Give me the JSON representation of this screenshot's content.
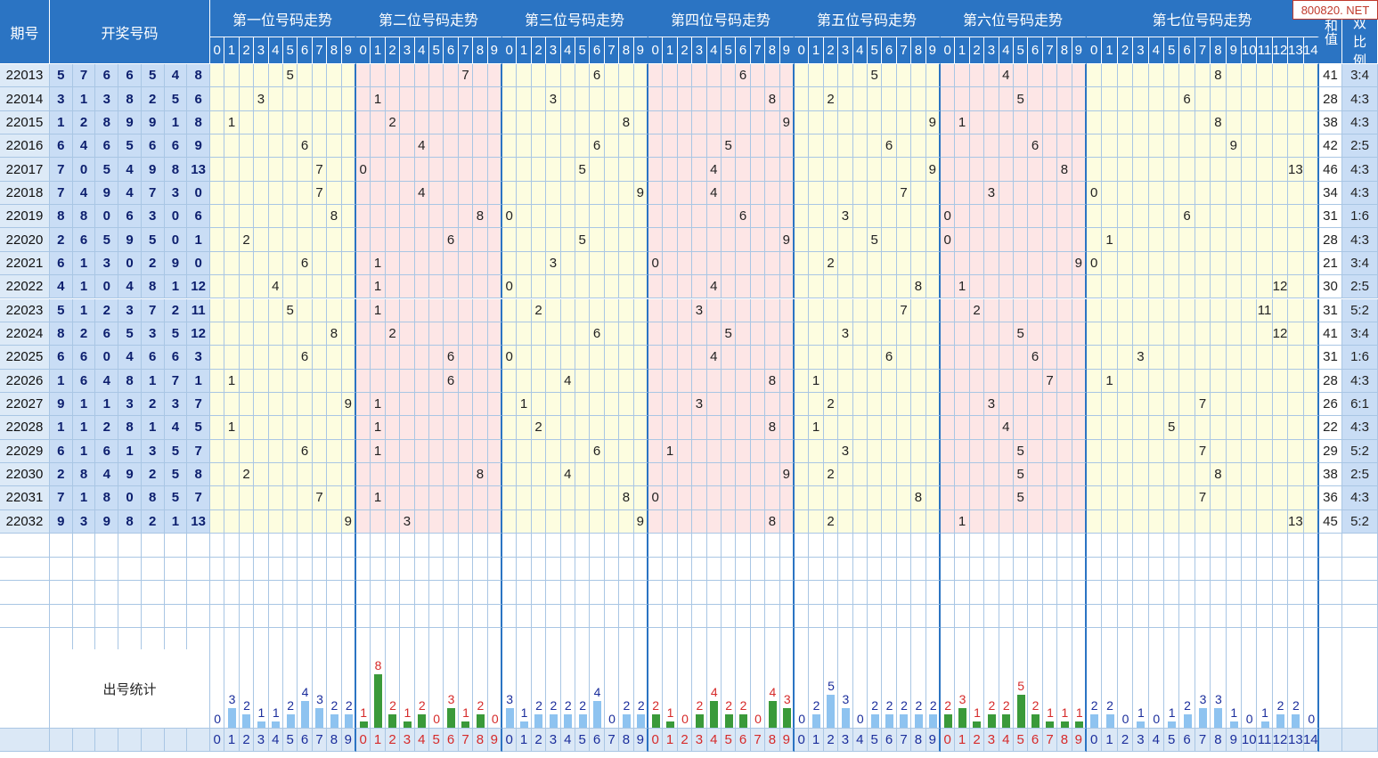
{
  "watermark": "800820. NET",
  "header": {
    "issue_label": "期号",
    "draw_label": "开奖号码",
    "position_titles": [
      "第一位号码走势",
      "第二位号码走势",
      "第三位号码走势",
      "第四位号码走势",
      "第五位号码走势",
      "第六位号码走势",
      "第七位号码走势"
    ],
    "sum_label": "和值",
    "ratio_label": "单双比例",
    "digits_0_9": [
      "0",
      "1",
      "2",
      "3",
      "4",
      "5",
      "6",
      "7",
      "8",
      "9"
    ],
    "digits_0_14": [
      "0",
      "1",
      "2",
      "3",
      "4",
      "5",
      "6",
      "7",
      "8",
      "9",
      "10",
      "11",
      "12",
      "13",
      "14"
    ]
  },
  "rows": [
    {
      "issue": "22013",
      "nums": [
        5,
        7,
        6,
        6,
        5,
        4,
        8
      ],
      "sum": "41",
      "ratio": "3:4"
    },
    {
      "issue": "22014",
      "nums": [
        3,
        1,
        3,
        8,
        2,
        5,
        6
      ],
      "sum": "28",
      "ratio": "4:3"
    },
    {
      "issue": "22015",
      "nums": [
        1,
        2,
        8,
        9,
        9,
        1,
        8
      ],
      "sum": "38",
      "ratio": "4:3"
    },
    {
      "issue": "22016",
      "nums": [
        6,
        4,
        6,
        5,
        6,
        6,
        9
      ],
      "sum": "42",
      "ratio": "2:5"
    },
    {
      "issue": "22017",
      "nums": [
        7,
        0,
        5,
        4,
        9,
        8,
        13
      ],
      "sum": "46",
      "ratio": "4:3"
    },
    {
      "issue": "22018",
      "nums": [
        7,
        4,
        9,
        4,
        7,
        3,
        0
      ],
      "sum": "34",
      "ratio": "4:3"
    },
    {
      "issue": "22019",
      "nums": [
        8,
        8,
        0,
        6,
        3,
        0,
        6
      ],
      "sum": "31",
      "ratio": "1:6"
    },
    {
      "issue": "22020",
      "nums": [
        2,
        6,
        5,
        9,
        5,
        0,
        1
      ],
      "sum": "28",
      "ratio": "4:3"
    },
    {
      "issue": "22021",
      "nums": [
        6,
        1,
        3,
        0,
        2,
        9,
        0
      ],
      "sum": "21",
      "ratio": "3:4"
    },
    {
      "issue": "22022",
      "nums": [
        4,
        1,
        0,
        4,
        8,
        1,
        12
      ],
      "sum": "30",
      "ratio": "2:5"
    },
    {
      "issue": "22023",
      "nums": [
        5,
        1,
        2,
        3,
        7,
        2,
        11
      ],
      "sum": "31",
      "ratio": "5:2"
    },
    {
      "issue": "22024",
      "nums": [
        8,
        2,
        6,
        5,
        3,
        5,
        12
      ],
      "sum": "41",
      "ratio": "3:4"
    },
    {
      "issue": "22025",
      "nums": [
        6,
        6,
        0,
        4,
        6,
        6,
        3
      ],
      "sum": "31",
      "ratio": "1:6"
    },
    {
      "issue": "22026",
      "nums": [
        1,
        6,
        4,
        8,
        1,
        7,
        1
      ],
      "sum": "28",
      "ratio": "4:3"
    },
    {
      "issue": "22027",
      "nums": [
        9,
        1,
        1,
        3,
        2,
        3,
        7
      ],
      "sum": "26",
      "ratio": "6:1"
    },
    {
      "issue": "22028",
      "nums": [
        1,
        1,
        2,
        8,
        1,
        4,
        5
      ],
      "sum": "22",
      "ratio": "4:3"
    },
    {
      "issue": "22029",
      "nums": [
        6,
        1,
        6,
        1,
        3,
        5,
        7
      ],
      "sum": "29",
      "ratio": "5:2"
    },
    {
      "issue": "22030",
      "nums": [
        2,
        8,
        4,
        9,
        2,
        5,
        8
      ],
      "sum": "38",
      "ratio": "2:5"
    },
    {
      "issue": "22031",
      "nums": [
        7,
        1,
        8,
        0,
        8,
        5,
        7
      ],
      "sum": "36",
      "ratio": "4:3"
    },
    {
      "issue": "22032",
      "nums": [
        9,
        3,
        9,
        8,
        2,
        1,
        13
      ],
      "sum": "45",
      "ratio": "5:2"
    }
  ],
  "stats_label": "出号统计",
  "stats": [
    [
      0,
      3,
      2,
      1,
      1,
      2,
      4,
      3,
      2,
      2
    ],
    [
      1,
      8,
      2,
      1,
      2,
      0,
      3,
      1,
      2,
      0
    ],
    [
      3,
      1,
      2,
      2,
      2,
      2,
      4,
      0,
      2,
      2
    ],
    [
      2,
      1,
      0,
      2,
      4,
      2,
      2,
      0,
      4,
      3
    ],
    [
      0,
      2,
      5,
      3,
      0,
      2,
      2,
      2,
      2,
      2
    ],
    [
      2,
      3,
      1,
      2,
      2,
      5,
      2,
      1,
      1,
      1
    ],
    [
      2,
      2,
      0,
      1,
      0,
      1,
      2,
      3,
      3,
      1,
      0,
      1,
      2,
      2,
      0
    ]
  ],
  "colors": {
    "header_blue": "#2b74c3",
    "stat_red": "#d62a2a",
    "stat_blue": "#1b2e9c",
    "bar_blue": "#8ec3f0",
    "bar_green": "#3a9a3a"
  }
}
